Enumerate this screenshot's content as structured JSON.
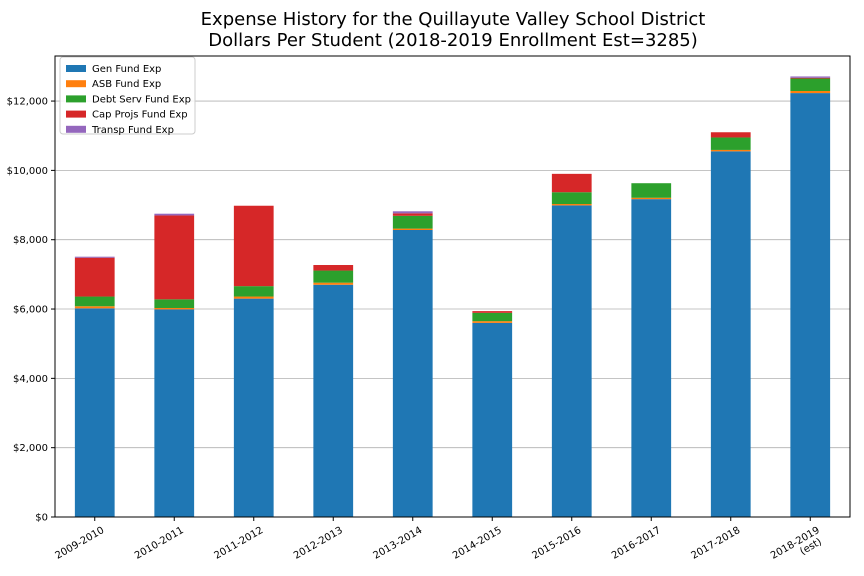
{
  "chart_data": {
    "type": "bar",
    "stacked": true,
    "title_lines": [
      "Expense History for the Quillayute Valley School District",
      "Dollars Per Student (2018-2019 Enrollment Est=3285)"
    ],
    "categories": [
      [
        "2009-2010"
      ],
      [
        "2010-2011"
      ],
      [
        "2011-2012"
      ],
      [
        "2012-2013"
      ],
      [
        "2013-2014"
      ],
      [
        "2014-2015"
      ],
      [
        "2015-2016"
      ],
      [
        "2016-2017"
      ],
      [
        "2017-2018"
      ],
      [
        "2018-2019",
        "(est)"
      ]
    ],
    "series": [
      {
        "name": "Gen Fund Exp",
        "color": "#1f77b4",
        "values": [
          6020,
          5990,
          6300,
          6700,
          8280,
          5600,
          8990,
          9170,
          10550,
          12230
        ]
      },
      {
        "name": "ASB Fund Exp",
        "color": "#ff7f0e",
        "values": [
          60,
          40,
          60,
          60,
          40,
          50,
          40,
          40,
          40,
          60
        ]
      },
      {
        "name": "Debt Serv Fund Exp",
        "color": "#2ca02c",
        "values": [
          280,
          250,
          300,
          350,
          370,
          240,
          340,
          420,
          360,
          360
        ]
      },
      {
        "name": "Cap Projs Fund Exp",
        "color": "#d62728",
        "values": [
          1120,
          2420,
          2320,
          160,
          70,
          50,
          530,
          0,
          150,
          20
        ]
      },
      {
        "name": "Transp Fund Exp",
        "color": "#9467bd",
        "values": [
          30,
          50,
          0,
          0,
          60,
          0,
          0,
          0,
          0,
          40
        ]
      }
    ],
    "yticks": [
      "$0",
      "$2,000",
      "$4,000",
      "$6,000",
      "$8,000",
      "$10,000",
      "$12,000"
    ],
    "ytick_values": [
      0,
      2000,
      4000,
      6000,
      8000,
      10000,
      12000
    ],
    "ylim": [
      0,
      13300
    ],
    "grid": "horizontal",
    "legend_position": "top-left"
  }
}
